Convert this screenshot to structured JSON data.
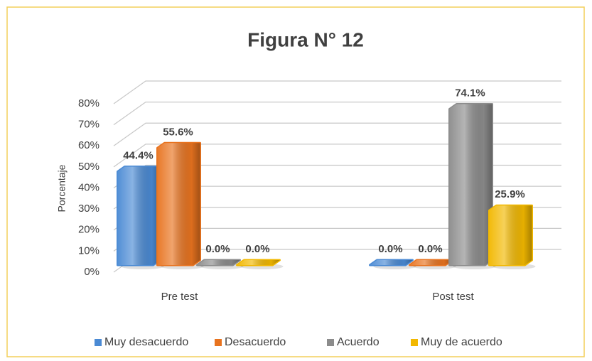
{
  "chart_data": {
    "type": "bar3d",
    "title": "Figura N° 12",
    "y_label": "Porcentaje",
    "categories": [
      "Pre test",
      "Post test"
    ],
    "series": [
      {
        "name": "Muy desacuerdo",
        "color": "#4a8ad4",
        "values": [
          44.4,
          0.0
        ],
        "value_labels": [
          "44.4%",
          "0.0%"
        ]
      },
      {
        "name": "Desacuerdo",
        "color": "#e8731f",
        "values": [
          55.6,
          0.0
        ],
        "value_labels": [
          "55.6%",
          "0.0%"
        ]
      },
      {
        "name": "Acuerdo",
        "color": "#8c8c8c",
        "values": [
          0.0,
          74.1
        ],
        "value_labels": [
          "0.0%",
          "74.1%"
        ]
      },
      {
        "name": "Muy de acuerdo",
        "color": "#f2b800",
        "values": [
          0.0,
          25.9
        ],
        "value_labels": [
          "0.0%",
          "25.9%"
        ]
      }
    ],
    "ylim": [
      0,
      80
    ],
    "yticks": [
      {
        "value": 0,
        "label": "0%"
      },
      {
        "value": 10,
        "label": "10%"
      },
      {
        "value": 20,
        "label": "20%"
      },
      {
        "value": 30,
        "label": "30%"
      },
      {
        "value": 40,
        "label": "40%"
      },
      {
        "value": 50,
        "label": "50%"
      },
      {
        "value": 60,
        "label": "60%"
      },
      {
        "value": 70,
        "label": "70%"
      },
      {
        "value": 80,
        "label": "80%"
      }
    ],
    "grid": true,
    "legend": "bottom"
  }
}
